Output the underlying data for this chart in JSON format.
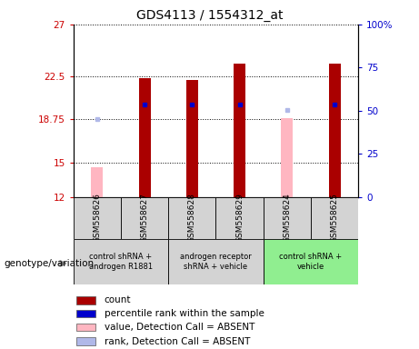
{
  "title": "GDS4113 / 1554312_at",
  "samples": [
    "GSM558626",
    "GSM558627",
    "GSM558628",
    "GSM558629",
    "GSM558624",
    "GSM558625"
  ],
  "count_values": [
    null,
    22.3,
    22.15,
    23.6,
    null,
    23.6
  ],
  "rank_values": [
    null,
    20.05,
    20.05,
    20.05,
    null,
    20.05
  ],
  "absent_value_values": [
    14.6,
    null,
    null,
    null,
    18.9,
    null
  ],
  "absent_rank_values": [
    18.75,
    null,
    null,
    null,
    19.6,
    null
  ],
  "ylim_left": [
    12,
    27
  ],
  "ylim_right": [
    0,
    100
  ],
  "yticks_left": [
    12,
    15,
    18.75,
    22.5,
    27
  ],
  "yticks_right": [
    0,
    25,
    50,
    75,
    100
  ],
  "ytick_labels_left": [
    "12",
    "15",
    "18.75",
    "22.5",
    "27"
  ],
  "ytick_labels_right": [
    "0",
    "25",
    "50",
    "75",
    "100%"
  ],
  "left_axis_color": "#cc0000",
  "right_axis_color": "#0000cc",
  "bar_width": 0.25,
  "count_color": "#aa0000",
  "rank_color": "#0000cc",
  "absent_value_color": "#ffb6c1",
  "absent_rank_color": "#b0b8e8",
  "legend_items": [
    {
      "color": "#aa0000",
      "label": "count"
    },
    {
      "color": "#0000cc",
      "label": "percentile rank within the sample"
    },
    {
      "color": "#ffb6c1",
      "label": "value, Detection Call = ABSENT"
    },
    {
      "color": "#b0b8e8",
      "label": "rank, Detection Call = ABSENT"
    }
  ],
  "genotype_label": "genotype/variation",
  "groups_info": [
    {
      "start": 0,
      "end": 1,
      "label": "control shRNA +\nandrogen R1881",
      "color": "#d3d3d3"
    },
    {
      "start": 2,
      "end": 3,
      "label": "androgen receptor\nshRNA + vehicle",
      "color": "#d3d3d3"
    },
    {
      "start": 4,
      "end": 5,
      "label": "control shRNA +\nvehicle",
      "color": "#90ee90"
    }
  ]
}
